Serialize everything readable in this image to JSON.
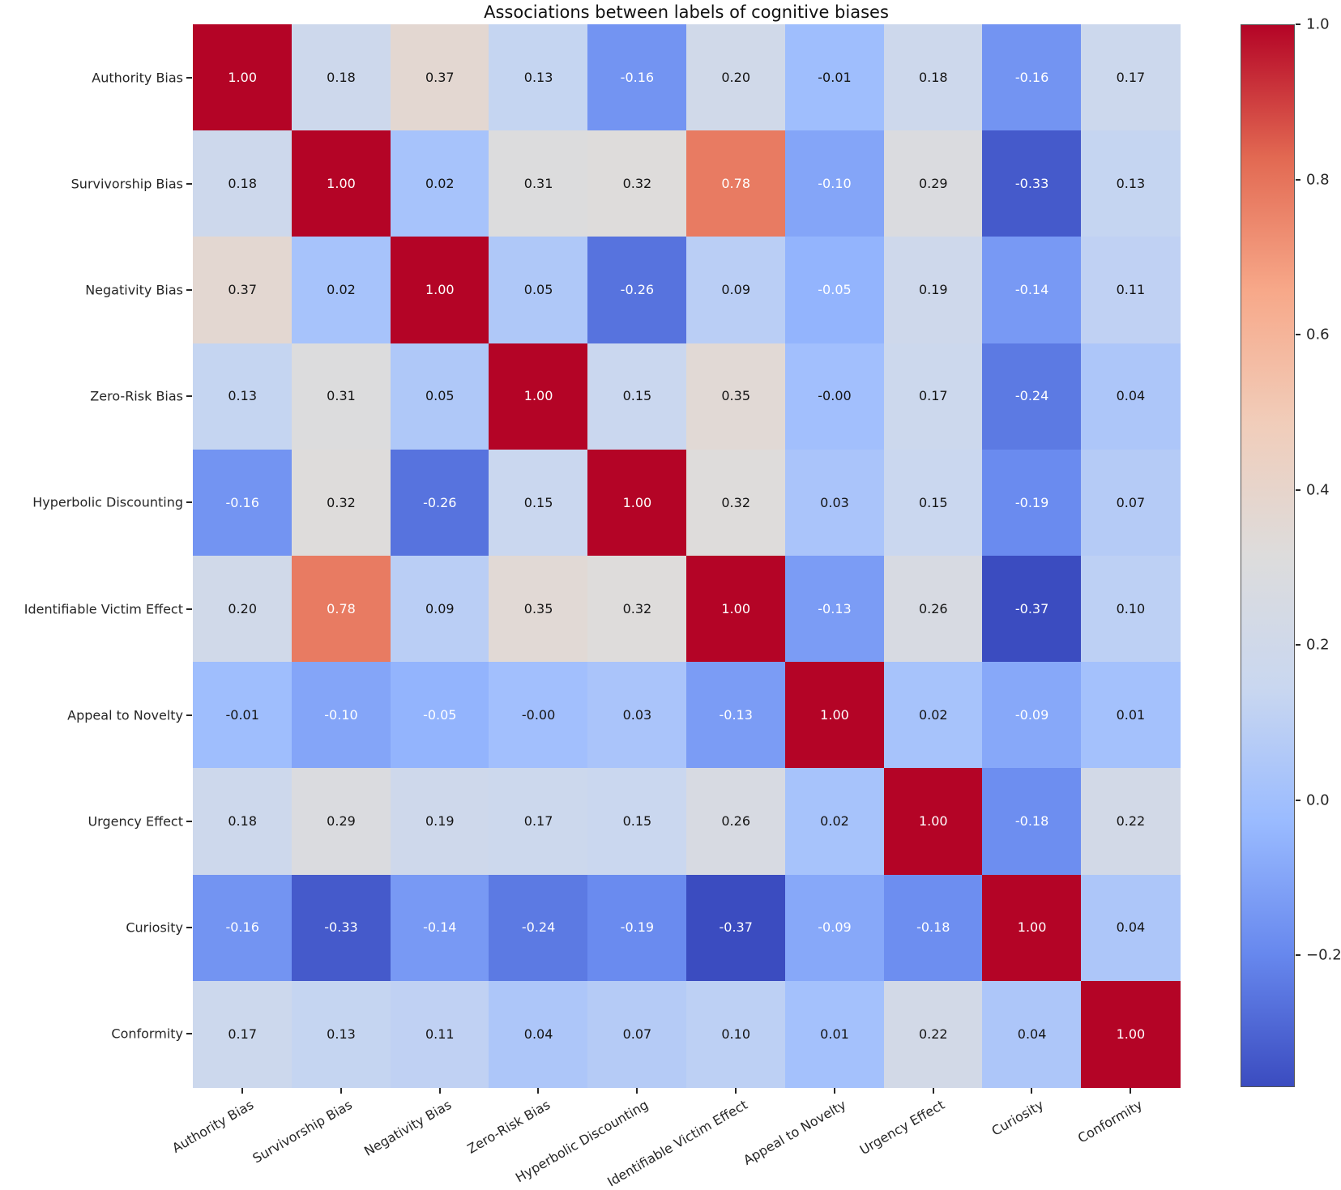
{
  "chart_data": {
    "type": "heatmap",
    "title": "Associations between labels of cognitive biases",
    "labels": [
      "Authority Bias",
      "Survivorship Bias",
      "Negativity Bias",
      "Zero-Risk Bias",
      "Hyperbolic Discounting",
      "Identifiable Victim Effect",
      "Appeal to Novelty",
      "Urgency Effect",
      "Curiosity",
      "Conformity"
    ],
    "matrix": [
      [
        "1.00",
        "0.18",
        "0.37",
        "0.13",
        "-0.16",
        "0.20",
        "-0.01",
        "0.18",
        "-0.16",
        "0.17"
      ],
      [
        "0.18",
        "1.00",
        "0.02",
        "0.31",
        "0.32",
        "0.78",
        "-0.10",
        "0.29",
        "-0.33",
        "0.13"
      ],
      [
        "0.37",
        "0.02",
        "1.00",
        "0.05",
        "-0.26",
        "0.09",
        "-0.05",
        "0.19",
        "-0.14",
        "0.11"
      ],
      [
        "0.13",
        "0.31",
        "0.05",
        "1.00",
        "0.15",
        "0.35",
        "-0.00",
        "0.17",
        "-0.24",
        "0.04"
      ],
      [
        "-0.16",
        "0.32",
        "-0.26",
        "0.15",
        "1.00",
        "0.32",
        "0.03",
        "0.15",
        "-0.19",
        "0.07"
      ],
      [
        "0.20",
        "0.78",
        "0.09",
        "0.35",
        "0.32",
        "1.00",
        "-0.13",
        "0.26",
        "-0.37",
        "0.10"
      ],
      [
        "-0.01",
        "-0.10",
        "-0.05",
        "-0.00",
        "0.03",
        "-0.13",
        "1.00",
        "0.02",
        "-0.09",
        "0.01"
      ],
      [
        "0.18",
        "0.29",
        "0.19",
        "0.17",
        "0.15",
        "0.26",
        "0.02",
        "1.00",
        "-0.18",
        "0.22"
      ],
      [
        "-0.16",
        "-0.33",
        "-0.14",
        "-0.24",
        "-0.19",
        "-0.37",
        "-0.09",
        "-0.18",
        "1.00",
        "0.04"
      ],
      [
        "0.17",
        "0.13",
        "0.11",
        "0.04",
        "0.07",
        "0.10",
        "0.01",
        "0.22",
        "0.04",
        "1.00"
      ]
    ],
    "vmin": -0.37,
    "vmax": 1.0,
    "grid": false,
    "legend_position": "right-colorbar",
    "colorbar": {
      "tick_labels": [
        "1.0",
        "0.8",
        "0.6",
        "0.4",
        "0.2",
        "0.0",
        "−0.2"
      ],
      "tick_values": [
        1.0,
        0.8,
        0.6,
        0.4,
        0.2,
        0.0,
        -0.2
      ]
    },
    "colormap": {
      "name": "coolwarm",
      "anchors": [
        {
          "t": 0.0,
          "hex": "#3b4cc0"
        },
        {
          "t": 0.125,
          "hex": "#6788ee"
        },
        {
          "t": 0.25,
          "hex": "#9abbff"
        },
        {
          "t": 0.375,
          "hex": "#c9d7f0"
        },
        {
          "t": 0.5,
          "hex": "#dddcdc"
        },
        {
          "t": 0.625,
          "hex": "#f1cdba"
        },
        {
          "t": 0.75,
          "hex": "#f7a889"
        },
        {
          "t": 0.875,
          "hex": "#e26952"
        },
        {
          "t": 1.0,
          "hex": "#b40426"
        }
      ]
    },
    "annotation_text_colors": {
      "light": "#ffffff",
      "dark": "#141414"
    },
    "axis_text_color": "#262626"
  }
}
